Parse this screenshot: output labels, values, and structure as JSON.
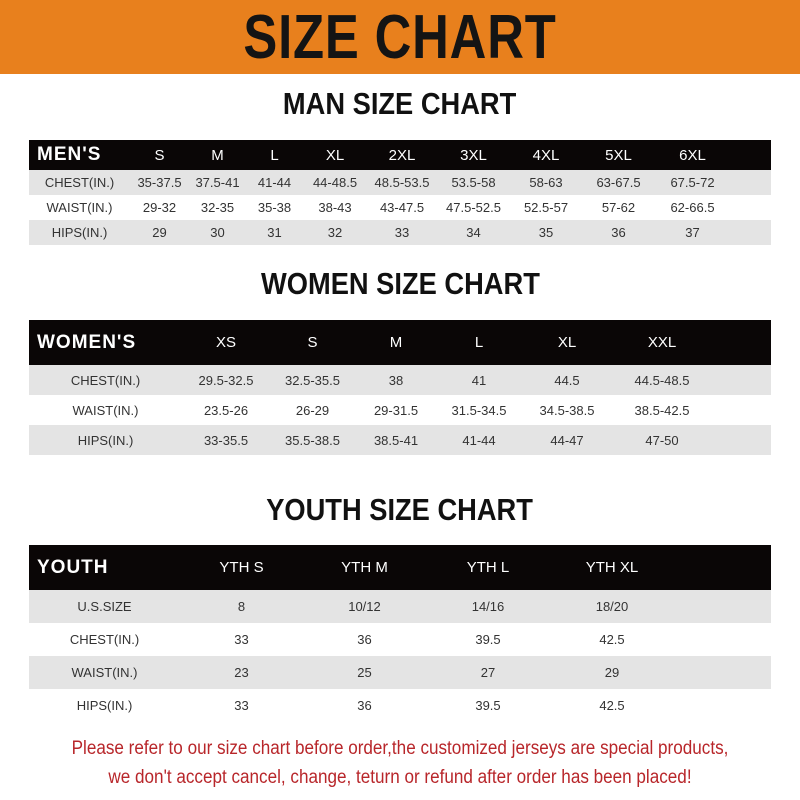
{
  "title": "SIZE CHART",
  "colors": {
    "banner": "#e8801d",
    "header_row": "#0a0606",
    "notice": "#b8262a"
  },
  "men": {
    "title": "MAN SIZE CHART",
    "header": [
      "MEN'S",
      "S",
      "M",
      "L",
      "XL",
      "2XL",
      "3XL",
      "4XL",
      "5XL",
      "6XL"
    ],
    "rows": [
      [
        "CHEST(IN.)",
        "35-37.5",
        "37.5-41",
        "41-44",
        "44-48.5",
        "48.5-53.5",
        "53.5-58",
        "58-63",
        "63-67.5",
        "67.5-72"
      ],
      [
        "WAIST(IN.)",
        "29-32",
        "32-35",
        "35-38",
        "38-43",
        "43-47.5",
        "47.5-52.5",
        "52.5-57",
        "57-62",
        "62-66.5"
      ],
      [
        "HIPS(IN.)",
        "29",
        "30",
        "31",
        "32",
        "33",
        "34",
        "35",
        "36",
        "37"
      ]
    ]
  },
  "women": {
    "title": "WOMEN SIZE CHART",
    "header": [
      "WOMEN'S",
      "XS",
      "S",
      "M",
      "L",
      "XL",
      "XXL"
    ],
    "rows": [
      [
        "CHEST(IN.)",
        "29.5-32.5",
        "32.5-35.5",
        "38",
        "41",
        "44.5",
        "44.5-48.5"
      ],
      [
        "WAIST(IN.)",
        "23.5-26",
        "26-29",
        "29-31.5",
        "31.5-34.5",
        "34.5-38.5",
        "38.5-42.5"
      ],
      [
        "HIPS(IN.)",
        "33-35.5",
        "35.5-38.5",
        "38.5-41",
        "41-44",
        "44-47",
        "47-50"
      ]
    ]
  },
  "youth": {
    "title": "YOUTH SIZE CHART",
    "header": [
      "YOUTH",
      "YTH S",
      "YTH M",
      "YTH L",
      "YTH XL"
    ],
    "rows": [
      [
        "U.S.SIZE",
        "8",
        "10/12",
        "14/16",
        "18/20"
      ],
      [
        "CHEST(IN.)",
        "33",
        "36",
        "39.5",
        "42.5"
      ],
      [
        "WAIST(IN.)",
        "23",
        "25",
        "27",
        "29"
      ],
      [
        "HIPS(IN.)",
        "33",
        "36",
        "39.5",
        "42.5"
      ]
    ]
  },
  "notice": [
    "Please refer to our size chart before order,the customized jerseys are special products,",
    "we don't accept cancel, change, teturn or refund after order has been placed!"
  ]
}
